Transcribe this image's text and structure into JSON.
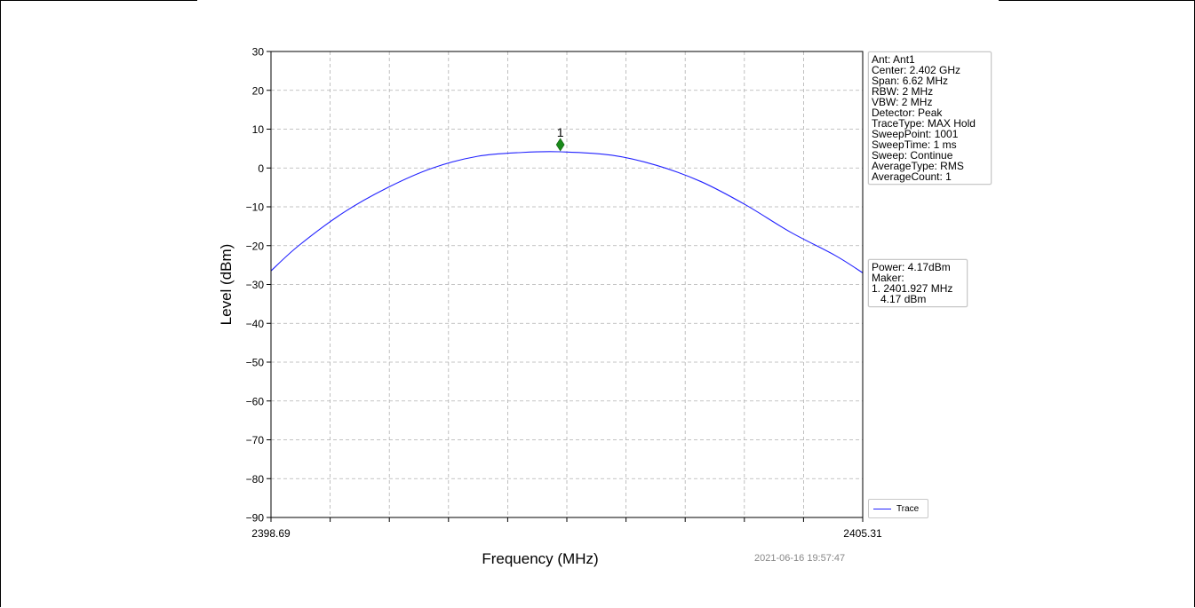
{
  "chart_data": {
    "type": "line",
    "xlabel": "Frequency (MHz)",
    "ylabel": "Level (dBm)",
    "xlim": [
      2398.69,
      2405.31
    ],
    "ylim": [
      -90,
      30
    ],
    "x_tick_labels": [
      "2398.69",
      "2405.31"
    ],
    "y_ticks": [
      30,
      20,
      10,
      0,
      -10,
      -20,
      -30,
      -40,
      -50,
      -60,
      -70,
      -80,
      -90
    ],
    "grid": true,
    "legend_placement": "bottom-right",
    "series": [
      {
        "name": "Trace",
        "color": "#2222ff",
        "x": [
          2398.69,
          2399.0,
          2399.5,
          2400.0,
          2400.5,
          2401.0,
          2401.5,
          2401.927,
          2402.5,
          2403.0,
          2403.5,
          2404.0,
          2404.5,
          2405.0,
          2405.31
        ],
        "y": [
          -26.5,
          -20.0,
          -11.5,
          -5.0,
          0.0,
          3.0,
          4.0,
          4.17,
          3.3,
          0.7,
          -3.5,
          -9.5,
          -16.5,
          -22.5,
          -27.0
        ]
      }
    ],
    "marker": {
      "label": "1",
      "x": 2401.927,
      "y": 6.0,
      "color": "#1a8a1a"
    }
  },
  "info_box": {
    "lines": [
      "Ant: Ant1",
      "Center: 2.402 GHz",
      "Span: 6.62 MHz",
      "RBW: 2 MHz",
      "VBW: 2 MHz",
      "Detector: Peak",
      "TraceType: MAX Hold",
      "SweepPoint: 1001",
      "SweepTime: 1 ms",
      "Sweep: Continue",
      "AverageType: RMS",
      "AverageCount: 1"
    ]
  },
  "power_box": {
    "lines": [
      "Power: 4.17dBm",
      "Maker:",
      "1. 2401.927 MHz",
      "   4.17 dBm"
    ]
  },
  "legend": {
    "label": "Trace"
  },
  "timestamp": "2021-06-16 19:57:47"
}
